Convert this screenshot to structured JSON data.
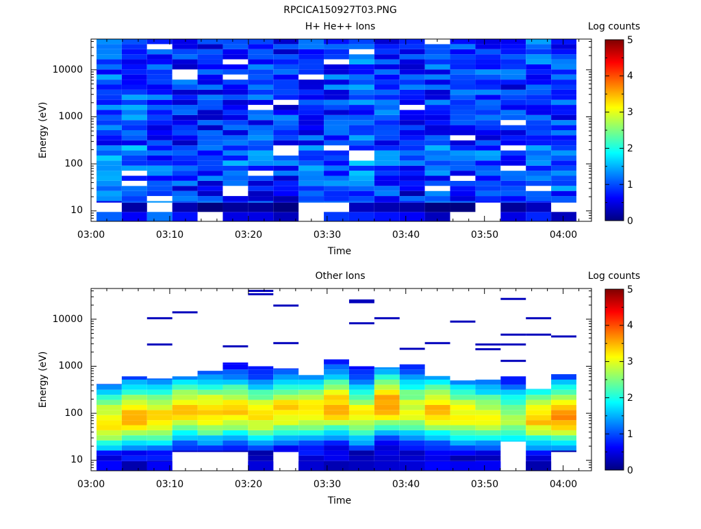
{
  "figure_title": "RPCICA150927T03.PNG",
  "colormap": [
    "#00007f",
    "#0000ff",
    "#007fff",
    "#00ffff",
    "#7fff7f",
    "#ffff00",
    "#ff7f00",
    "#ff0000",
    "#7f0000"
  ],
  "chart_data": [
    {
      "type": "heatmap",
      "title": "H+ He++ Ions",
      "xlabel": "Time",
      "ylabel": "Energy (eV)",
      "x_tick_labels": [
        "03:00",
        "03:10",
        "03:20",
        "03:30",
        "03:40",
        "03:50",
        "04:00"
      ],
      "y_tick_labels": [
        "10",
        "100",
        "1000",
        "10000"
      ],
      "y_scale": "log",
      "ylim": [
        6,
        45000
      ],
      "colorbar": {
        "label": "Log counts",
        "range": [
          0,
          5
        ],
        "tick_labels": [
          "0",
          "1",
          "2",
          "3",
          "4",
          "5"
        ]
      },
      "time_bins": [
        "03:00",
        "03:03",
        "03:07",
        "03:10",
        "03:13",
        "03:17",
        "03:20",
        "03:23",
        "03:27",
        "03:30",
        "03:33",
        "03:37",
        "03:40",
        "03:43",
        "03:47",
        "03:50",
        "03:53",
        "03:57",
        "04:00"
      ],
      "profile": {
        "energy_bounds": [
          6,
          15,
          40,
          45000
        ],
        "level_bands": [
          {
            "energy_range": [
              6,
              15
            ],
            "log_counts": [
              0.8,
              0.3,
              0.9,
              0.4,
              0.0,
              0.2,
              0.2,
              0.0,
              0.3,
              0.6,
              0.5,
              0.4,
              0.3,
              0.0,
              0.0,
              0.3,
              0.2,
              0.5,
              0.0
            ]
          },
          {
            "energy_range": [
              15,
              40
            ],
            "log_counts": [
              1.0,
              1.1,
              0.9,
              0.8,
              0.8,
              0.9,
              0.8,
              0.7,
              0.8,
              0.9,
              0.9,
              0.8,
              0.7,
              0.9,
              0.8,
              0.8,
              0.8,
              0.9,
              1.0
            ]
          },
          {
            "energy_range": [
              40,
              45000
            ],
            "log_counts": [
              1.0,
              1.0,
              0.9,
              0.8,
              0.8,
              0.9,
              0.9,
              0.8,
              0.9,
              0.9,
              1.0,
              0.9,
              0.8,
              0.9,
              0.8,
              0.9,
              0.8,
              1.0,
              0.9
            ]
          }
        ],
        "empty_cells": [
          [
            0,
            15
          ],
          [
            2,
            15
          ],
          [
            4,
            6
          ],
          [
            8,
            6
          ],
          [
            8,
            15
          ],
          [
            9,
            15
          ],
          [
            14,
            6
          ],
          [
            15,
            6
          ],
          [
            15,
            15
          ],
          [
            18,
            15
          ]
        ]
      }
    },
    {
      "type": "heatmap",
      "title": "Other Ions",
      "xlabel": "Time",
      "ylabel": "Energy (eV)",
      "x_tick_labels": [
        "03:00",
        "03:10",
        "03:20",
        "03:30",
        "03:40",
        "03:50",
        "04:00"
      ],
      "y_tick_labels": [
        "10",
        "100",
        "1000",
        "10000"
      ],
      "y_scale": "log",
      "ylim": [
        6,
        45000
      ],
      "colorbar": {
        "label": "Log counts",
        "range": [
          0,
          5
        ],
        "tick_labels": [
          "0",
          "1",
          "2",
          "3",
          "4",
          "5"
        ]
      },
      "time_bins": [
        "03:00",
        "03:03",
        "03:07",
        "03:10",
        "03:13",
        "03:17",
        "03:20",
        "03:23",
        "03:27",
        "03:30",
        "03:33",
        "03:37",
        "03:40",
        "03:43",
        "03:47",
        "03:50",
        "03:53",
        "03:57",
        "04:00"
      ],
      "profile": {
        "peak_energy_ev": [
          60,
          80,
          80,
          110,
          100,
          110,
          90,
          110,
          110,
          130,
          90,
          150,
          110,
          110,
          90,
          80,
          70,
          80,
          80
        ],
        "peak_log_counts": [
          3.3,
          3.6,
          3.3,
          3.3,
          3.4,
          3.3,
          3.2,
          3.3,
          3.3,
          3.5,
          3.1,
          3.7,
          3.0,
          3.4,
          3.1,
          3.0,
          2.7,
          3.4,
          3.7
        ],
        "upper_edge_ev": [
          420,
          610,
          550,
          610,
          800,
          1200,
          1000,
          900,
          650,
          1400,
          1000,
          950,
          1100,
          620,
          500,
          520,
          610,
          330,
          680
        ],
        "lower_edge_ev": [
          6,
          6,
          6,
          15,
          15,
          15,
          6,
          15,
          6,
          6,
          6,
          6,
          6,
          6,
          6,
          6,
          25,
          6,
          15
        ],
        "sparse_marks": [
          {
            "time_bin": "03:07",
            "energy_ev": 10500
          },
          {
            "time_bin": "03:07",
            "energy_ev": 2900
          },
          {
            "time_bin": "03:10",
            "energy_ev": 14000
          },
          {
            "time_bin": "03:17",
            "energy_ev": 2650
          },
          {
            "time_bin": "03:20",
            "energy_ev": 40000
          },
          {
            "time_bin": "03:20",
            "energy_ev": 34000
          },
          {
            "time_bin": "03:23",
            "energy_ev": 19500
          },
          {
            "time_bin": "03:23",
            "energy_ev": 3100
          },
          {
            "time_bin": "03:33",
            "energy_ev": 25000
          },
          {
            "time_bin": "03:33",
            "energy_ev": 23000
          },
          {
            "time_bin": "03:33",
            "energy_ev": 8200
          },
          {
            "time_bin": "03:37",
            "energy_ev": 10500
          },
          {
            "time_bin": "03:40",
            "energy_ev": 2350
          },
          {
            "time_bin": "03:43",
            "energy_ev": 3100
          },
          {
            "time_bin": "03:47",
            "energy_ev": 8900
          },
          {
            "time_bin": "03:50",
            "energy_ev": 2900
          },
          {
            "time_bin": "03:50",
            "energy_ev": 2300
          },
          {
            "time_bin": "03:53",
            "energy_ev": 27000
          },
          {
            "time_bin": "03:53",
            "energy_ev": 4700
          },
          {
            "time_bin": "03:53",
            "energy_ev": 2900
          },
          {
            "time_bin": "03:53",
            "energy_ev": 1300
          },
          {
            "time_bin": "03:57",
            "energy_ev": 10500
          },
          {
            "time_bin": "03:57",
            "energy_ev": 4700
          },
          {
            "time_bin": "04:00",
            "energy_ev": 4300
          }
        ]
      }
    }
  ]
}
